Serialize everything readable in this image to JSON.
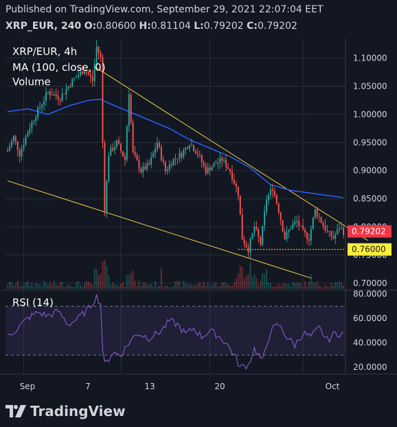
{
  "header": {
    "published": "Published on TradingView.com, September 29, 2021 22:07:04 EET",
    "symbol": "XRP_EUR, 240",
    "ohlc": {
      "o_label": "O:",
      "o": "0.80600",
      "h_label": "H:",
      "h": "0.81104",
      "l_label": "L:",
      "l": "0.79202",
      "c_label": "C:",
      "c": "0.79202"
    }
  },
  "legend": {
    "symbol": "XRP/EUR, 4h",
    "ma": "MA (100, close, 0)",
    "volume": "Volume",
    "rsi": "RSI (14)"
  },
  "footer": {
    "brand": "TradingView",
    "logo_icon": "tradingview-logo-icon"
  },
  "colors": {
    "background": "#131722",
    "up": "#26a69a",
    "down": "#ef5350",
    "ma": "#2962ff",
    "trendline": "#f5d742",
    "rsi": "#7e57c2",
    "last_price_bg": "#f23645",
    "level_bg": "#ffeb3b"
  },
  "chart_data": [
    {
      "type": "candlestick",
      "title": "XRP/EUR, 4h",
      "x_ticks": [
        "Sep",
        "7",
        "13",
        "20",
        "Oct"
      ],
      "y_ticks": [
        "1.10000",
        "1.05000",
        "1.00000",
        "0.95000",
        "0.90000",
        "0.85000",
        "0.80000",
        "0.75000",
        "0.70000"
      ],
      "ylim": [
        0.69,
        1.135
      ],
      "price_labels": {
        "last": "0.79202",
        "level": "0.76000"
      },
      "level_line": 0.76,
      "anchors": [
        [
          0,
          0.935
        ],
        [
          3,
          0.96
        ],
        [
          6,
          0.93
        ],
        [
          10,
          0.97
        ],
        [
          14,
          1.0
        ],
        [
          20,
          1.04
        ],
        [
          26,
          1.03
        ],
        [
          32,
          1.06
        ],
        [
          38,
          1.08
        ],
        [
          42,
          1.06
        ],
        [
          44,
          1.12
        ],
        [
          46,
          1.1
        ],
        [
          47,
          0.95
        ],
        [
          48,
          0.83
        ],
        [
          50,
          0.93
        ],
        [
          54,
          0.95
        ],
        [
          58,
          0.92
        ],
        [
          60,
          1.04
        ],
        [
          62,
          0.93
        ],
        [
          66,
          0.9
        ],
        [
          70,
          0.91
        ],
        [
          74,
          0.95
        ],
        [
          78,
          0.9
        ],
        [
          82,
          0.92
        ],
        [
          86,
          0.93
        ],
        [
          90,
          0.95
        ],
        [
          94,
          0.93
        ],
        [
          98,
          0.9
        ],
        [
          102,
          0.91
        ],
        [
          106,
          0.92
        ],
        [
          110,
          0.9
        ],
        [
          114,
          0.86
        ],
        [
          116,
          0.78
        ],
        [
          119,
          0.76
        ],
        [
          122,
          0.8
        ],
        [
          125,
          0.77
        ],
        [
          128,
          0.85
        ],
        [
          131,
          0.87
        ],
        [
          134,
          0.83
        ],
        [
          137,
          0.78
        ],
        [
          140,
          0.8
        ],
        [
          143,
          0.81
        ],
        [
          146,
          0.79
        ],
        [
          149,
          0.78
        ],
        [
          152,
          0.83
        ],
        [
          155,
          0.81
        ],
        [
          158,
          0.79
        ],
        [
          161,
          0.78
        ],
        [
          164,
          0.8
        ],
        [
          166,
          0.79202
        ]
      ],
      "ma_series": [
        [
          0,
          1.005
        ],
        [
          10,
          1.01
        ],
        [
          20,
          1.0
        ],
        [
          30,
          1.015
        ],
        [
          40,
          1.025
        ],
        [
          46,
          1.027
        ],
        [
          50,
          1.02
        ],
        [
          60,
          1.005
        ],
        [
          70,
          0.99
        ],
        [
          80,
          0.975
        ],
        [
          90,
          0.955
        ],
        [
          100,
          0.94
        ],
        [
          110,
          0.925
        ],
        [
          120,
          0.905
        ],
        [
          130,
          0.875
        ],
        [
          140,
          0.865
        ],
        [
          150,
          0.86
        ],
        [
          160,
          0.855
        ],
        [
          166,
          0.852
        ]
      ],
      "trendlines": [
        {
          "from": [
            43,
            1.085
          ],
          "to": [
            178,
            0.776
          ]
        },
        {
          "from": [
            0,
            0.882
          ],
          "to": [
            150,
            0.709
          ]
        }
      ]
    },
    {
      "type": "line",
      "title": "RSI (14)",
      "y_ticks": [
        "80.0000",
        "60.0000",
        "40.0000",
        "20.0000"
      ],
      "ylim": [
        15,
        82
      ],
      "bands": [
        30,
        70
      ],
      "values": [
        [
          0,
          45
        ],
        [
          5,
          52
        ],
        [
          10,
          60
        ],
        [
          15,
          65
        ],
        [
          20,
          62
        ],
        [
          25,
          66
        ],
        [
          30,
          55
        ],
        [
          35,
          60
        ],
        [
          40,
          68
        ],
        [
          44,
          78
        ],
        [
          46,
          72
        ],
        [
          47,
          35
        ],
        [
          48,
          22
        ],
        [
          52,
          32
        ],
        [
          56,
          30
        ],
        [
          60,
          40
        ],
        [
          64,
          48
        ],
        [
          70,
          44
        ],
        [
          76,
          50
        ],
        [
          80,
          58
        ],
        [
          84,
          55
        ],
        [
          88,
          47
        ],
        [
          92,
          52
        ],
        [
          96,
          45
        ],
        [
          100,
          50
        ],
        [
          104,
          46
        ],
        [
          108,
          40
        ],
        [
          112,
          30
        ],
        [
          115,
          20
        ],
        [
          119,
          22
        ],
        [
          122,
          35
        ],
        [
          126,
          25
        ],
        [
          130,
          50
        ],
        [
          134,
          55
        ],
        [
          138,
          45
        ],
        [
          142,
          38
        ],
        [
          146,
          48
        ],
        [
          150,
          45
        ],
        [
          154,
          52
        ],
        [
          158,
          42
        ],
        [
          162,
          48
        ],
        [
          166,
          47
        ]
      ]
    }
  ]
}
